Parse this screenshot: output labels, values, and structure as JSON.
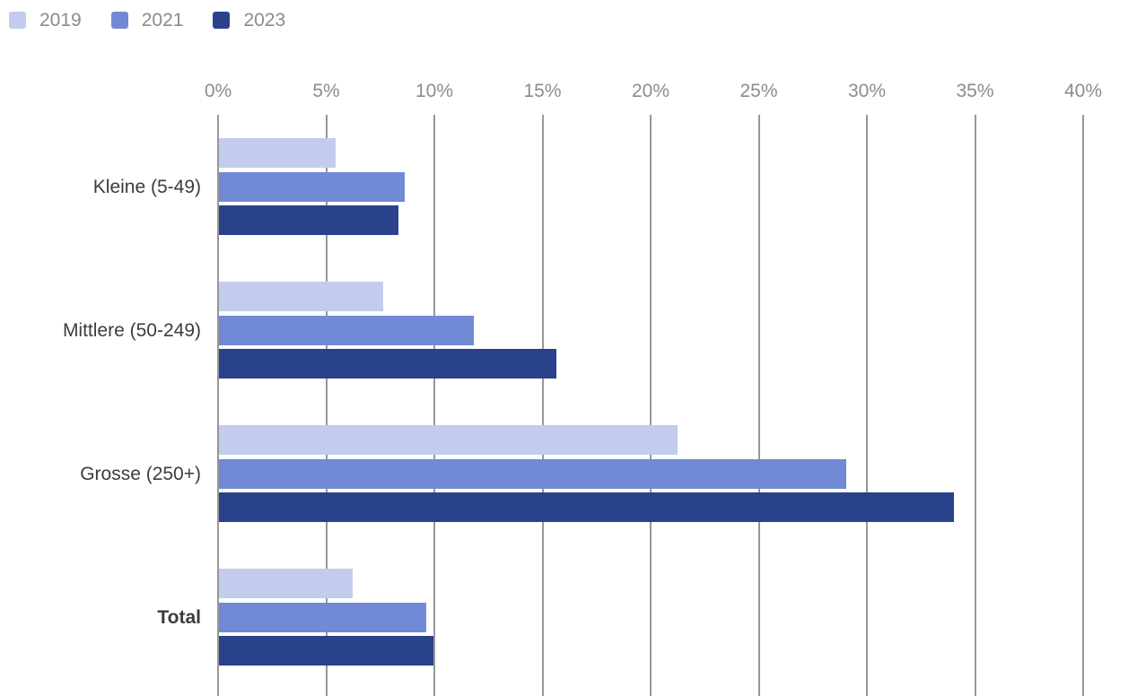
{
  "legend": {
    "items": [
      {
        "label": "2019",
        "color": "#c2cdee"
      },
      {
        "label": "2021",
        "color": "#7289d5"
      },
      {
        "label": "2023",
        "color": "#2a418c"
      }
    ]
  },
  "chart_data": {
    "type": "bar",
    "orientation": "horizontal",
    "title": "",
    "categories": [
      "Kleine (5-49)",
      "Mittlere (50-249)",
      "Grosse (250+)",
      "Total"
    ],
    "bold_categories": [
      "Total"
    ],
    "series": [
      {
        "name": "2019",
        "color": "#c2cdee",
        "values": [
          5.4,
          7.6,
          21.2,
          6.2
        ]
      },
      {
        "name": "2021",
        "color": "#7289d5",
        "values": [
          8.6,
          11.8,
          29.0,
          9.6
        ]
      },
      {
        "name": "2023",
        "color": "#2a418c",
        "values": [
          8.3,
          15.6,
          34.0,
          9.9
        ]
      }
    ],
    "x_axis": {
      "tick_labels": [
        "0%",
        "5%",
        "10%",
        "15%",
        "20%",
        "25%",
        "30%",
        "35%",
        "40%"
      ],
      "tick_values": [
        0,
        5,
        10,
        15,
        20,
        25,
        30,
        35,
        40
      ],
      "min": 0,
      "max": 40,
      "unit": "%"
    },
    "grid": true,
    "legend_position": "top-left"
  },
  "colors": {
    "gridline": "#979797",
    "tick_label": "#8c8c8c",
    "legend_label": "#8c8c8c",
    "category_label": "#3c3c3c",
    "background": "#ffffff"
  }
}
